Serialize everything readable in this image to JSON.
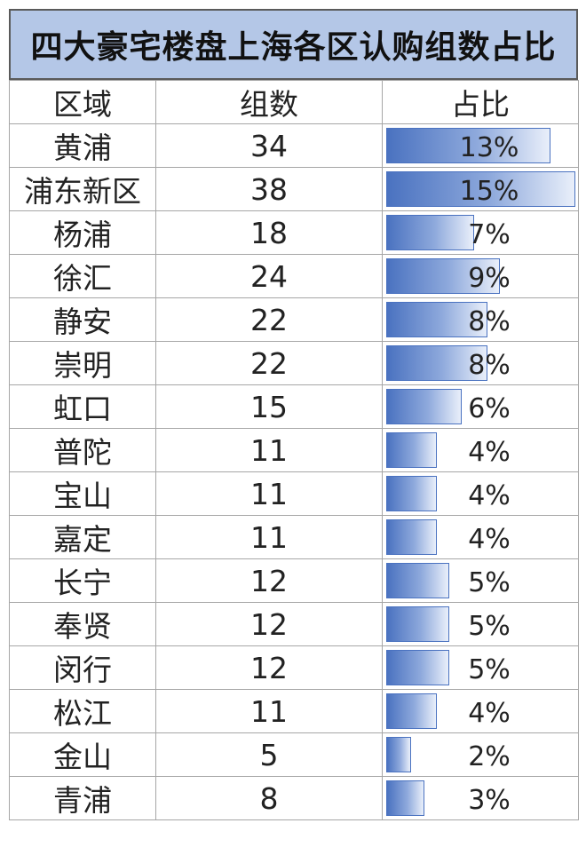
{
  "title": "四大豪宅楼盘上海各区认购组数占比",
  "headers": {
    "district": "区域",
    "count": "组数",
    "share": "占比"
  },
  "rows": [
    {
      "district": "黄浦",
      "count": "34",
      "share": "13%",
      "share_value": 13
    },
    {
      "district": "浦东新区",
      "count": "38",
      "share": "15%",
      "share_value": 15
    },
    {
      "district": "杨浦",
      "count": "18",
      "share": "7%",
      "share_value": 7
    },
    {
      "district": "徐汇",
      "count": "24",
      "share": "9%",
      "share_value": 9
    },
    {
      "district": "静安",
      "count": "22",
      "share": "8%",
      "share_value": 8
    },
    {
      "district": "崇明",
      "count": "22",
      "share": "8%",
      "share_value": 8
    },
    {
      "district": "虹口",
      "count": "15",
      "share": "6%",
      "share_value": 6
    },
    {
      "district": "普陀",
      "count": "11",
      "share": "4%",
      "share_value": 4
    },
    {
      "district": "宝山",
      "count": "11",
      "share": "4%",
      "share_value": 4
    },
    {
      "district": "嘉定",
      "count": "11",
      "share": "4%",
      "share_value": 4
    },
    {
      "district": "长宁",
      "count": "12",
      "share": "5%",
      "share_value": 5
    },
    {
      "district": "奉贤",
      "count": "12",
      "share": "5%",
      "share_value": 5
    },
    {
      "district": "闵行",
      "count": "12",
      "share": "5%",
      "share_value": 5
    },
    {
      "district": "松江",
      "count": "11",
      "share": "4%",
      "share_value": 4
    },
    {
      "district": "金山",
      "count": "5",
      "share": "2%",
      "share_value": 2
    },
    {
      "district": "青浦",
      "count": "8",
      "share": "3%",
      "share_value": 3
    }
  ],
  "colors": {
    "title_bg": "#b4c7e7",
    "bar": "#4a72c0",
    "grid": "#a6a6a6"
  }
}
